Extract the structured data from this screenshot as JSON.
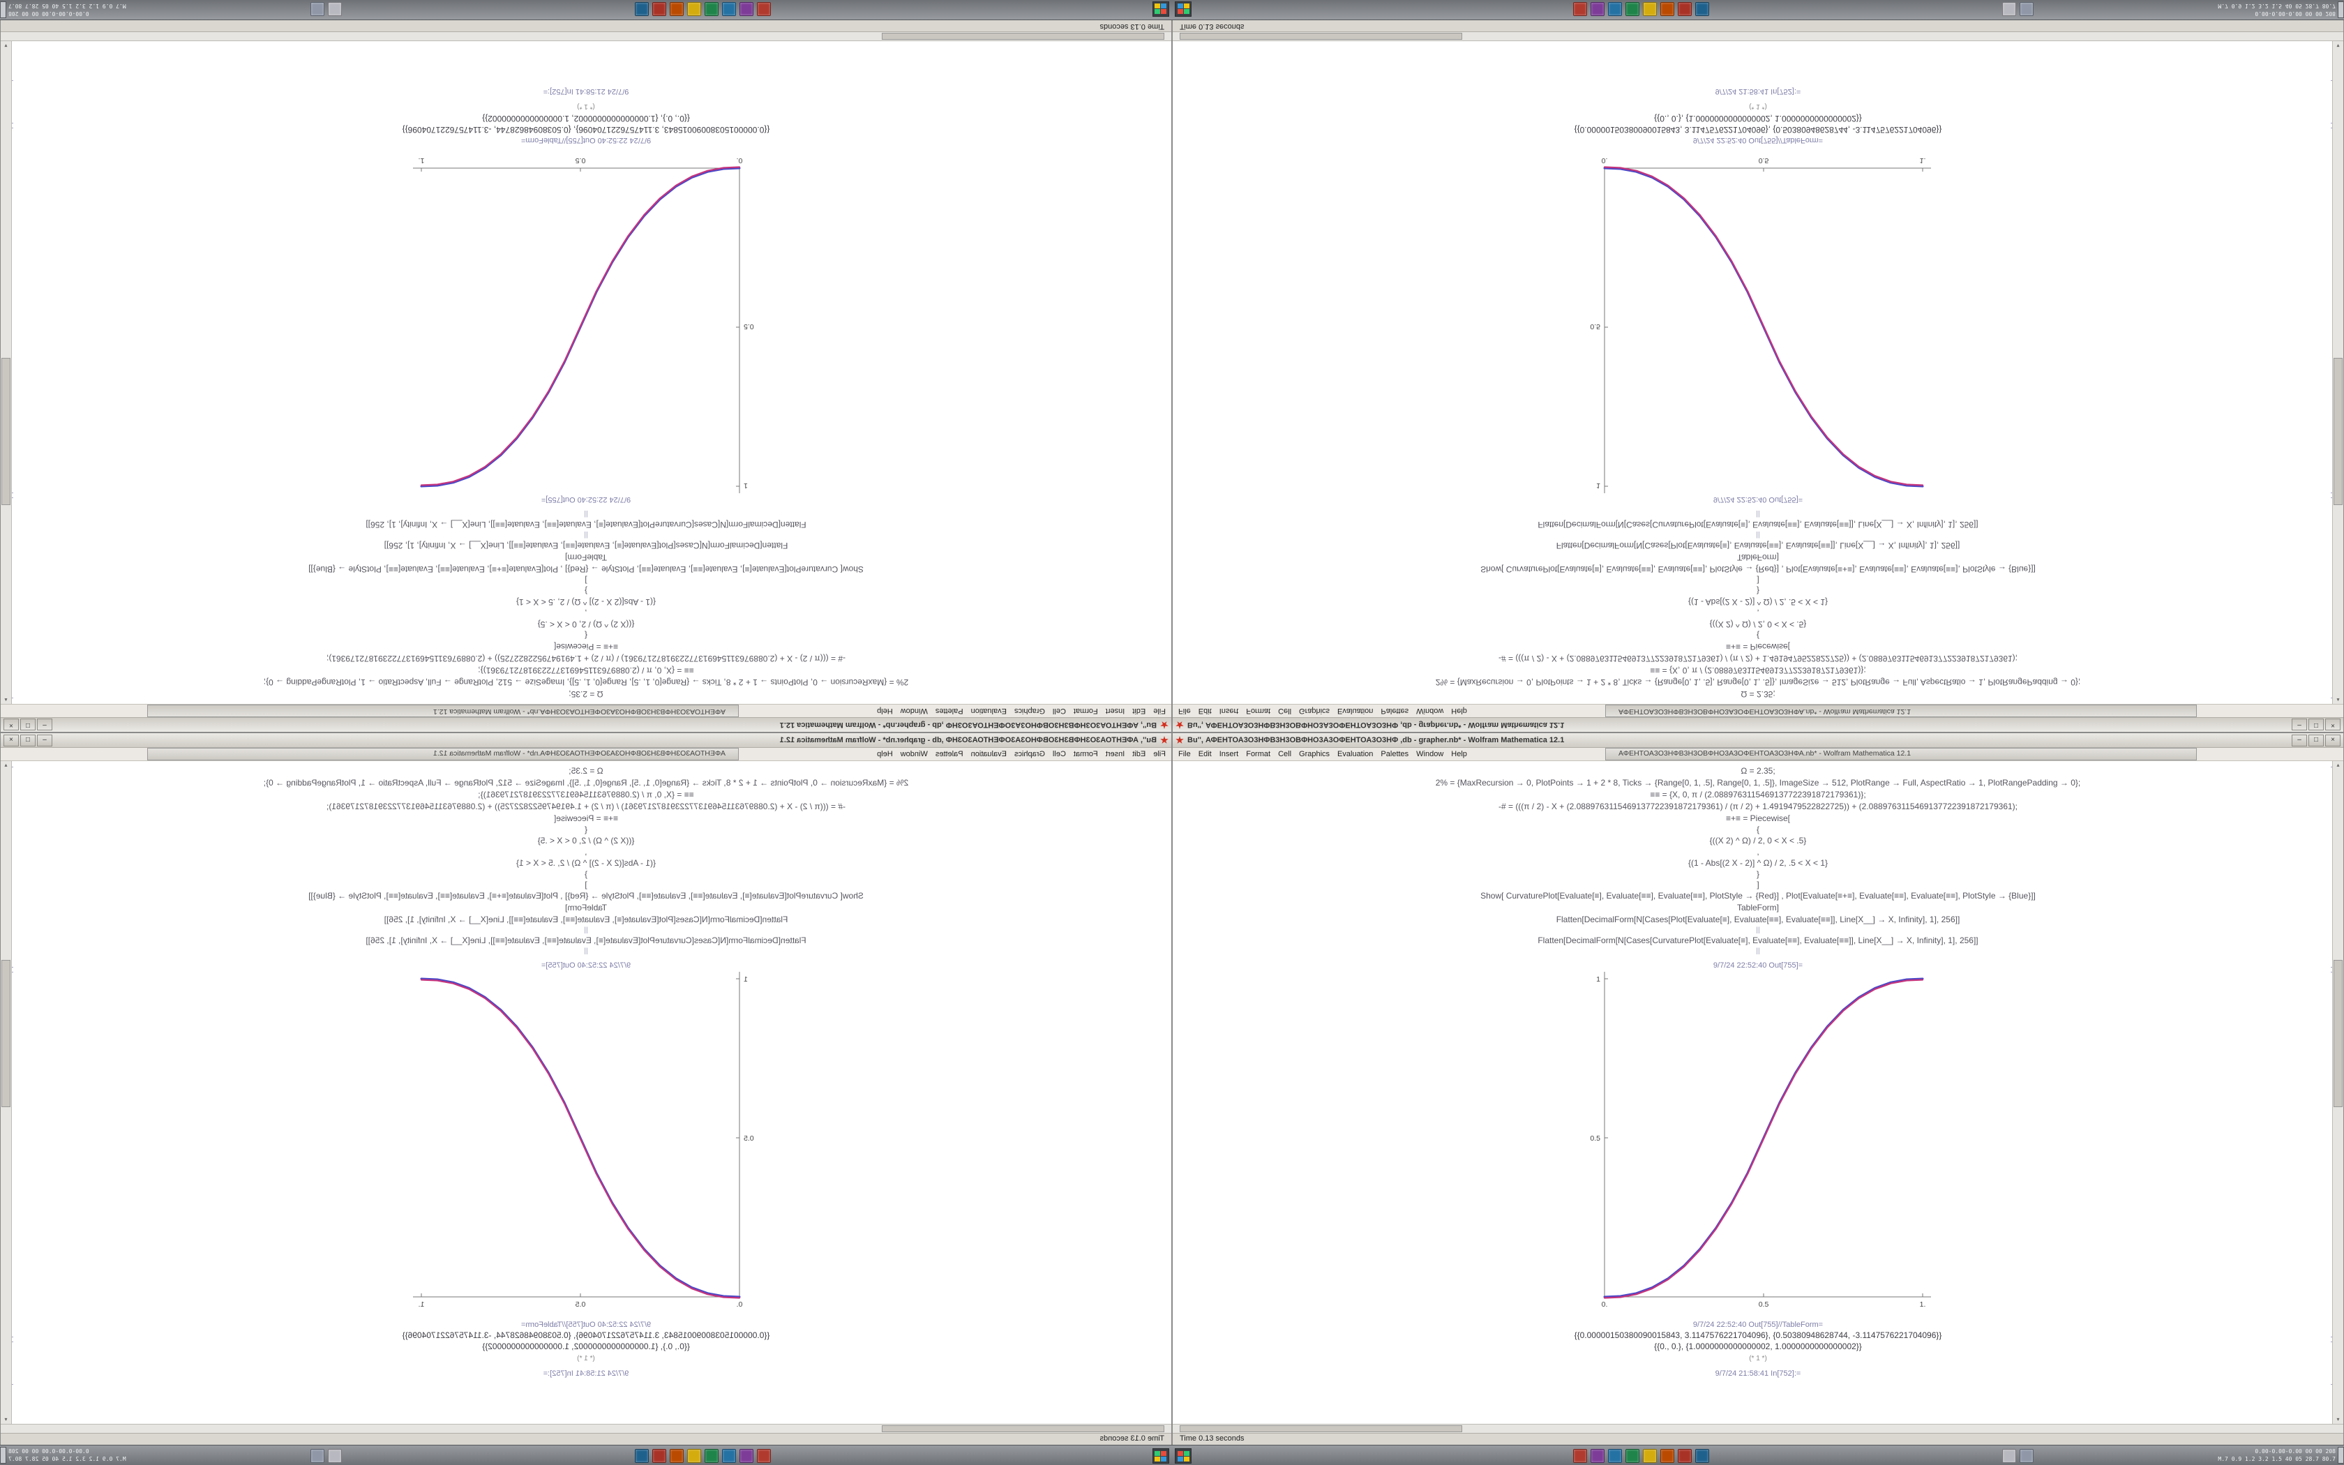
{
  "window": {
    "title": "Bu'', ΑΦΕΗΤΟΑ3Ο3ΗΦΒ3Η3ΟΒΦΗΟ3Α3ΟΦΕΗΤΟΑ3Ο3ΗΦ ,db - grapher.nb* - Wolfram Mathematica 12.1",
    "secondary_title": "ΑΦΕΗΤΟΑ3Ο3ΗΦΒ3Η3ΟΒΦΗΟ3Α3ΟΦΕΗΤΟΑ3Ο3ΗΦΑ.nb* - Wolfram Mathematica 12.1",
    "menu": [
      "File",
      "Edit",
      "Insert",
      "Format",
      "Cell",
      "Graphics",
      "Evaluation",
      "Palettes",
      "Window",
      "Help"
    ],
    "buttons": {
      "minimize": "–",
      "maximize": "□",
      "close": "×"
    },
    "status_text": "Time 0.13 seconds",
    "scroll_up": "▴",
    "scroll_down": "▾"
  },
  "notebook": {
    "cells": [
      {
        "kind": "code",
        "text": "Ω = 2.35;"
      },
      {
        "kind": "code",
        "text": "2% = {MaxRecursion → 0, PlotPoints → 1 + 2 * 8, Ticks → {Range[0, 1, .5], Range[0, 1, .5]}, ImageSize → 512, PlotRange → Full, AspectRatio → 1, PlotRangePadding → 0};"
      },
      {
        "kind": "code",
        "text": "≡≡ = {X, 0, π / (2.0889763115469137722391872179361)};"
      },
      {
        "kind": "code",
        "text": "-# = (((π / 2) - X + (2.0889763115469137722391872179361) / (π / 2) + 1.4919479522822725)) + (2.0889763115469137722391872179361);"
      },
      {
        "kind": "code",
        "text": "≡+≡ = Piecewise["
      },
      {
        "kind": "code tight",
        "text": "{"
      },
      {
        "kind": "code",
        "text": "{((X 2) ^ Ω) / 2, 0 < X < .5}"
      },
      {
        "kind": "code tight",
        "text": ","
      },
      {
        "kind": "code",
        "text": "{(1 - Abs[(2 X - 2)] ^ Ω) / 2, .5 < X < 1}"
      },
      {
        "kind": "code tight",
        "text": "}"
      },
      {
        "kind": "code tight",
        "text": "]"
      },
      {
        "kind": "code",
        "text": "Show[  CurvaturePlot[Evaluate[≡], Evaluate[≡≡], Evaluate[≡≡], PlotStyle → {Red}]  ,  Plot[Evaluate[≡+≡], Evaluate[≡≡], Evaluate[≡≡], PlotStyle → {Blue}]]"
      },
      {
        "kind": "code",
        "text": "TableForm]"
      },
      {
        "kind": "code",
        "text": "Flatten[DecimalForm[N[Cases[Plot[Evaluate[≡], Evaluate[≡≡], Evaluate[≡≡]], Line[X__] → X, Infinity], 1], 256]]"
      },
      {
        "kind": "divider",
        "text": "||"
      },
      {
        "kind": "code",
        "text": "Flatten[DecimalForm[N[Cases[CurvaturePlot[Evaluate[≡], Evaluate[≡≡], Evaluate[≡≡]], Line[X__] → X, Infinity], 1], 256]]"
      },
      {
        "kind": "divider",
        "text": "||"
      },
      {
        "kind": "label",
        "text": "9/7/24 22:52:40 Out[755]="
      },
      {
        "kind": "plot"
      },
      {
        "kind": "label",
        "text": "9/7/24 22:52:40 Out[755]//TableForm="
      },
      {
        "kind": "output",
        "text": "{{0.00000150380090015843, 3.1147576221704096}, {0.50380948628744, -3.1147576221704096}}"
      },
      {
        "kind": "output",
        "text": "{{0., 0.}, {1.0000000000000002, 1.0000000000000002}}"
      },
      {
        "kind": "small",
        "text": "(* 1 *)"
      },
      {
        "kind": "label",
        "text": "9/7/24 21:58:41 In[752]:="
      }
    ]
  },
  "chart_data": {
    "type": "line",
    "title": "",
    "xlabel": "",
    "ylabel": "",
    "xlim": [
      0,
      1
    ],
    "ylim": [
      0,
      1
    ],
    "grid": false,
    "legend": "none",
    "x_ticks": [
      {
        "v": 0,
        "label": "0."
      },
      {
        "v": 0.5,
        "label": "0.5"
      },
      {
        "v": 1,
        "label": "1."
      }
    ],
    "y_ticks": [
      {
        "v": 0.5,
        "label": "0.5"
      },
      {
        "v": 1,
        "label": "1"
      }
    ],
    "x": [
      0,
      0.05,
      0.1,
      0.15,
      0.2,
      0.25,
      0.3,
      0.35,
      0.4,
      0.45,
      0.5,
      0.55,
      0.6,
      0.65,
      0.7,
      0.75,
      0.8,
      0.85,
      0.9,
      0.95,
      1
    ],
    "series": [
      {
        "name": "Plot Evaluate[≡+≡] (Blue)",
        "color": "#4948c8",
        "y": [
          0,
          0.0022,
          0.0114,
          0.0295,
          0.058,
          0.098,
          0.1506,
          0.2163,
          0.296,
          0.39,
          0.5,
          0.61,
          0.704,
          0.7837,
          0.8494,
          0.902,
          0.942,
          0.9705,
          0.9886,
          0.9978,
          1
        ]
      },
      {
        "name": "CurvaturePlot Evaluate[≡] (Red)",
        "color": "#c4347c",
        "y": [
          0,
          0.0022,
          0.0114,
          0.0295,
          0.058,
          0.098,
          0.1506,
          0.2163,
          0.296,
          0.39,
          0.5,
          0.61,
          0.704,
          0.7837,
          0.8494,
          0.902,
          0.942,
          0.9705,
          0.9886,
          0.9978,
          1
        ]
      }
    ]
  },
  "taskbar": {
    "icons": [
      {
        "name": "taskbar-icon-mathematica",
        "color": "#b03a2e"
      },
      {
        "name": "taskbar-icon-purple-app",
        "color": "#7d3c98"
      },
      {
        "name": "taskbar-icon-blue-app",
        "color": "#2471a3"
      },
      {
        "name": "taskbar-icon-green-app",
        "color": "#1e8449"
      },
      {
        "name": "taskbar-icon-yellow-app",
        "color": "#d4ac0d"
      },
      {
        "name": "taskbar-icon-orange-app",
        "color": "#ba4a00"
      },
      {
        "name": "taskbar-icon-red-app",
        "color": "#a93226"
      },
      {
        "name": "taskbar-icon-navy-app",
        "color": "#1f618d"
      }
    ],
    "icons_secondary": [
      {
        "name": "taskbar-icon-gray-app",
        "color": "#b8b8c0"
      },
      {
        "name": "taskbar-icon-steel-app",
        "color": "#9098a8"
      }
    ],
    "tray_line1": "0.00-0.00-0.00  00 00  208",
    "tray_line2": "M.7 0.9 1.2 3.2 1.5  40 05  28.7 80.7"
  }
}
